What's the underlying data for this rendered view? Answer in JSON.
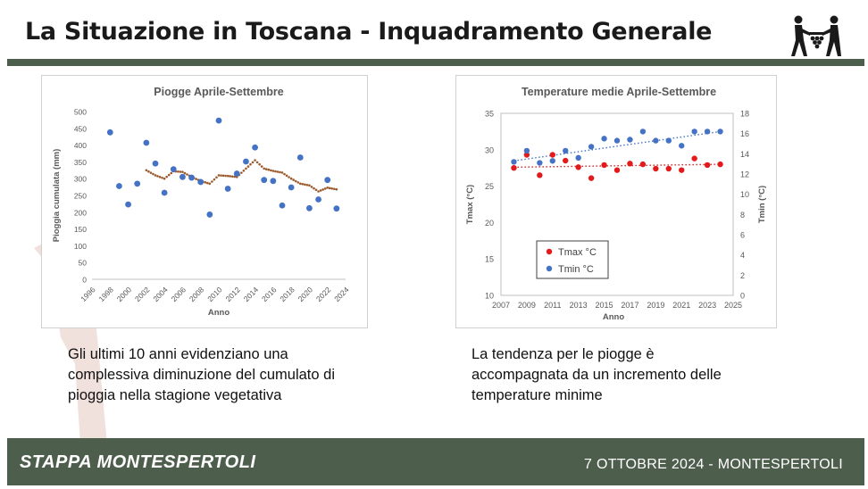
{
  "slide": {
    "title": "La Situazione in Toscana - Inquadramento Generale",
    "footer_left": "STAPPA MONTESPERTOLI",
    "footer_right": "7 OTTOBRE 2024 - MONTESPERTOLI",
    "colors": {
      "accent": "#4e5e4c",
      "series_blue": "#4472c4",
      "series_red": "#e31a1c",
      "trend_brown": "#9c5a2c"
    }
  },
  "captions": {
    "rain": "Gli ultimi 10 anni evidenziano una complessiva diminuzione del cumulato di pioggia nella stagione vegetativa",
    "temp": "La tendenza per le piogge è accompagnata da un incremento delle temperature minime"
  },
  "chart_data": [
    {
      "type": "scatter",
      "title": "Piogge Aprile-Settembre",
      "xlabel": "Anno",
      "ylabel": "Pioggia cumulata (mm)",
      "xlim": [
        1996,
        2024
      ],
      "ylim": [
        0,
        500
      ],
      "xticks": [
        1996,
        1998,
        2000,
        2002,
        2004,
        2006,
        2008,
        2010,
        2012,
        2014,
        2016,
        2018,
        2020,
        2022,
        2024
      ],
      "yticks": [
        0,
        50,
        100,
        150,
        200,
        250,
        300,
        350,
        400,
        450,
        500
      ],
      "series": [
        {
          "kind": "points",
          "color": "#4472c4",
          "x": [
            1998,
            1999,
            2000,
            2001,
            2002,
            2003,
            2004,
            2005,
            2006,
            2007,
            2008,
            2009,
            2010,
            2011,
            2012,
            2013,
            2014,
            2015,
            2016,
            2017,
            2018,
            2019,
            2020,
            2021,
            2022,
            2023
          ],
          "y": [
            438,
            278,
            223,
            285,
            407,
            345,
            258,
            328,
            305,
            303,
            290,
            193,
            473,
            270,
            315,
            351,
            393,
            296,
            293,
            220,
            274,
            363,
            212,
            238,
            296,
            211
          ]
        },
        {
          "kind": "trend",
          "style": "dotted",
          "color": "#9c5a2c",
          "x": [
            2002,
            2003,
            2004,
            2005,
            2006,
            2007,
            2008,
            2009,
            2010,
            2011,
            2012,
            2013,
            2014,
            2015,
            2016,
            2017,
            2018,
            2019,
            2020,
            2021,
            2022,
            2023
          ],
          "y": [
            325,
            310,
            300,
            322,
            320,
            305,
            293,
            285,
            310,
            308,
            305,
            330,
            355,
            330,
            323,
            318,
            300,
            285,
            280,
            262,
            273,
            268
          ]
        }
      ]
    },
    {
      "type": "scatter",
      "title": "Temperature medie Aprile-Settembre",
      "xlabel": "Anno",
      "ylabel": "Tmax (°C)",
      "ylabel2": "Tmin (°C)",
      "xlim": [
        2007,
        2025
      ],
      "ylim": [
        10,
        35
      ],
      "y2lim": [
        0,
        18
      ],
      "xticks": [
        2007,
        2009,
        2011,
        2013,
        2015,
        2017,
        2019,
        2021,
        2023,
        2025
      ],
      "yticks": [
        10,
        15,
        20,
        25,
        30,
        35
      ],
      "y2ticks": [
        0,
        2,
        4,
        6,
        8,
        10,
        12,
        14,
        16,
        18
      ],
      "legend_position": "bottom-left",
      "series": [
        {
          "name": "Tmax °C",
          "axis": "left",
          "color": "#e31a1c",
          "x": [
            2008,
            2009,
            2010,
            2011,
            2012,
            2013,
            2014,
            2015,
            2016,
            2017,
            2018,
            2019,
            2020,
            2021,
            2022,
            2023,
            2024
          ],
          "y": [
            27.5,
            29.3,
            26.5,
            29.3,
            28.5,
            27.6,
            26.1,
            27.9,
            27.2,
            28.1,
            28.0,
            27.4,
            27.4,
            27.2,
            28.8,
            27.9,
            28.0
          ]
        },
        {
          "name": "Tmin °C",
          "axis": "right",
          "color": "#4472c4",
          "x": [
            2008,
            2009,
            2010,
            2011,
            2012,
            2013,
            2014,
            2015,
            2016,
            2017,
            2018,
            2019,
            2020,
            2021,
            2022,
            2023,
            2024
          ],
          "y": [
            13.2,
            14.3,
            13.1,
            13.3,
            14.3,
            13.6,
            14.7,
            15.5,
            15.3,
            15.4,
            16.2,
            15.3,
            15.3,
            14.8,
            16.2,
            16.2,
            16.2
          ]
        },
        {
          "kind": "trend",
          "axis": "left",
          "color": "#e31a1c",
          "style": "dotted",
          "x": [
            2008,
            2024
          ],
          "y": [
            27.6,
            28.0
          ]
        },
        {
          "kind": "trend",
          "axis": "right",
          "color": "#4472c4",
          "style": "dotted",
          "x": [
            2008,
            2024
          ],
          "y": [
            13.3,
            16.2
          ]
        }
      ]
    }
  ]
}
